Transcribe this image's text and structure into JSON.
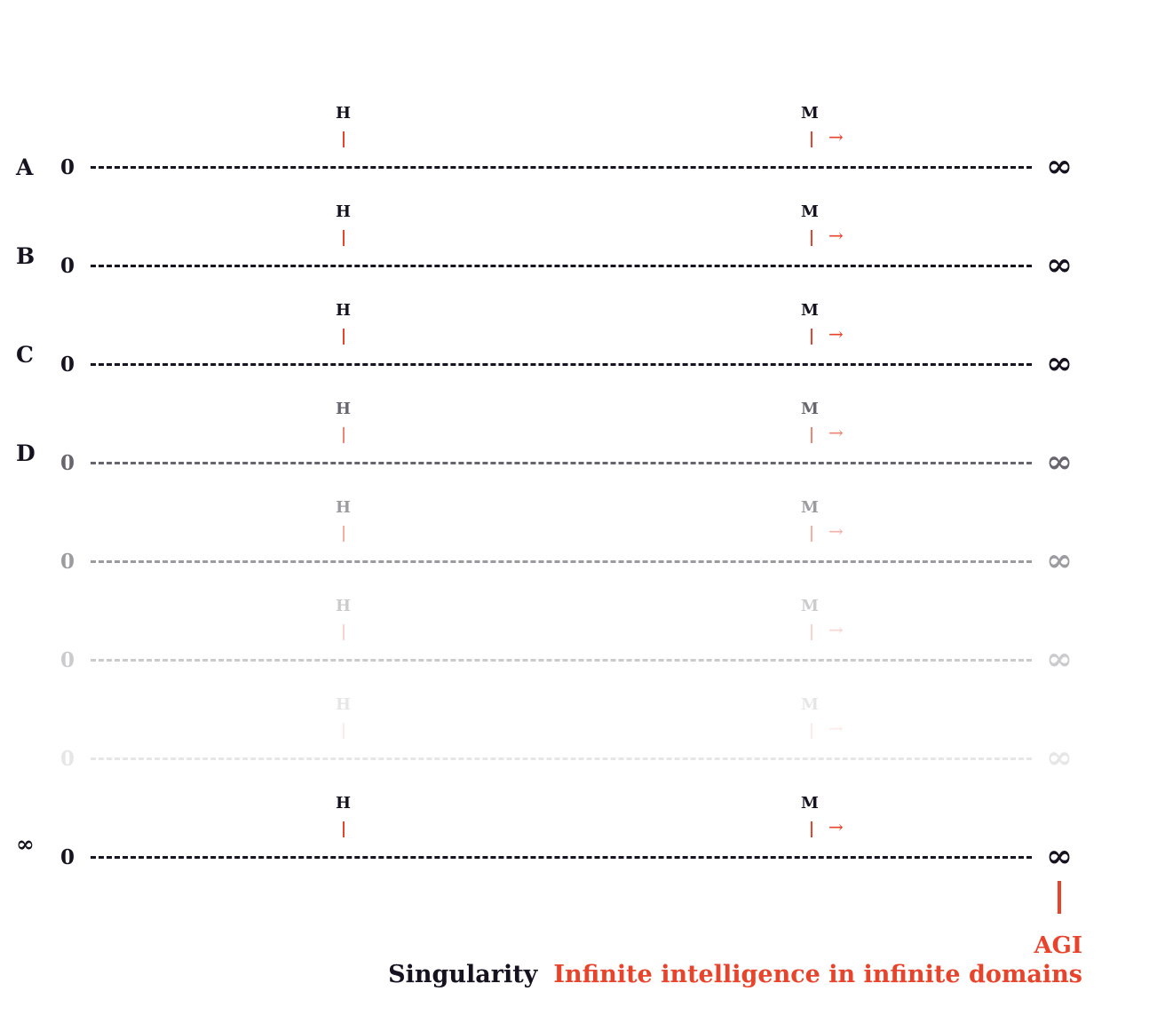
{
  "rows": [
    {
      "label": "A",
      "zero": "0",
      "end": "∞",
      "h_label": "H",
      "m_label": "M",
      "arrow": "→",
      "opacity": 1.0
    },
    {
      "label": "B",
      "zero": "0",
      "end": "∞",
      "h_label": "H",
      "m_label": "M",
      "arrow": "→",
      "opacity": 1.0
    },
    {
      "label": "C",
      "zero": "0",
      "end": "∞",
      "h_label": "H",
      "m_label": "M",
      "arrow": "→",
      "opacity": 1.0
    },
    {
      "label": "D",
      "zero": "0",
      "end": "∞",
      "h_label": "H",
      "m_label": "M",
      "arrow": "→",
      "opacity": 0.65
    },
    {
      "label": "",
      "zero": "0",
      "end": "∞",
      "h_label": "H",
      "m_label": "M",
      "arrow": "→",
      "opacity": 0.42
    },
    {
      "label": "",
      "zero": "0",
      "end": "∞",
      "h_label": "H",
      "m_label": "M",
      "arrow": "→",
      "opacity": 0.22
    },
    {
      "label": "",
      "zero": "0",
      "end": "∞",
      "h_label": "H",
      "m_label": "M",
      "arrow": "→",
      "opacity": 0.1
    },
    {
      "label": "∞",
      "zero": "0",
      "end": "∞",
      "h_label": "H",
      "m_label": "M",
      "arrow": "→",
      "opacity": 1.0
    }
  ],
  "agi": {
    "label": "AGI"
  },
  "caption": {
    "term": "Singularity",
    "definition": "Infinite intelligence in infinite domains"
  },
  "colors": {
    "ink": "#16121f",
    "accent": "#e8432b"
  }
}
